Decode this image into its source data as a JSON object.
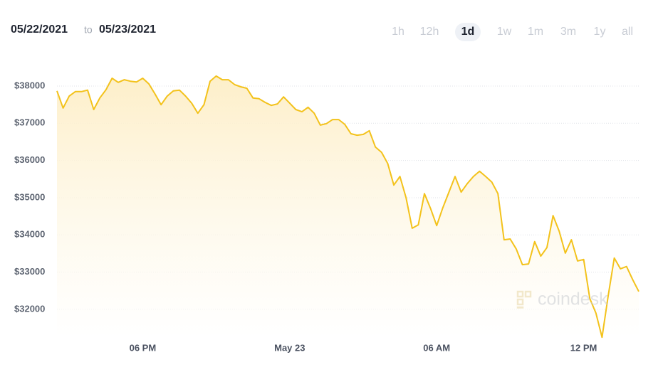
{
  "header": {
    "from_date": "05/22/2021",
    "to_word": "to",
    "to_date": "05/23/2021",
    "ranges": [
      "1h",
      "12h",
      "1d",
      "1w",
      "1m",
      "3m",
      "1y",
      "all"
    ],
    "selected": "1d"
  },
  "chart_data": {
    "type": "line",
    "watermark": "coindesk",
    "color": "#f3c21b",
    "grid": true,
    "categories": [
      null,
      null,
      null,
      null,
      null,
      null,
      null,
      null,
      null,
      null,
      null,
      null,
      null,
      null,
      "06 PM",
      null,
      null,
      null,
      null,
      null,
      null,
      null,
      null,
      null,
      null,
      null,
      null,
      null,
      null,
      null,
      null,
      null,
      null,
      null,
      null,
      null,
      null,
      null,
      "May 23",
      null,
      null,
      null,
      null,
      null,
      null,
      null,
      null,
      null,
      null,
      null,
      null,
      null,
      null,
      null,
      null,
      null,
      null,
      null,
      null,
      null,
      null,
      null,
      "06 AM",
      null,
      null,
      null,
      null,
      null,
      null,
      null,
      null,
      null,
      null,
      null,
      null,
      null,
      null,
      null,
      null,
      null,
      null,
      null,
      null,
      null,
      null,
      null,
      "12 PM",
      null,
      null,
      null,
      null,
      null,
      null,
      null,
      null,
      null
    ],
    "values": [
      37870,
      37410,
      37730,
      37850,
      37850,
      37890,
      37370,
      37680,
      37900,
      38210,
      38100,
      38170,
      38130,
      38110,
      38210,
      38060,
      37790,
      37500,
      37730,
      37870,
      37890,
      37730,
      37540,
      37270,
      37500,
      38130,
      38270,
      38170,
      38170,
      38040,
      37980,
      37940,
      37680,
      37660,
      37560,
      37480,
      37520,
      37710,
      37540,
      37370,
      37310,
      37430,
      37270,
      36950,
      36990,
      37100,
      37100,
      36970,
      36720,
      36680,
      36700,
      36800,
      36360,
      36220,
      35920,
      35340,
      35570,
      35000,
      34180,
      34270,
      35110,
      34710,
      34250,
      34730,
      35150,
      35570,
      35150,
      35380,
      35570,
      35710,
      35570,
      35420,
      35110,
      33870,
      33890,
      33620,
      33200,
      33220,
      33820,
      33430,
      33660,
      34520,
      34100,
      33510,
      33870,
      33300,
      33340,
      32290,
      31900,
      31250,
      32360,
      33380,
      33090,
      33150,
      32800,
      32480
    ],
    "ylim": [
      31100,
      38600
    ],
    "yticks": [
      {
        "value": 32000,
        "label": "$32000"
      },
      {
        "value": 33000,
        "label": "$33000"
      },
      {
        "value": 34000,
        "label": "$34000"
      },
      {
        "value": 35000,
        "label": "$35000"
      },
      {
        "value": 36000,
        "label": "$36000"
      },
      {
        "value": 37000,
        "label": "$37000"
      },
      {
        "value": 38000,
        "label": "$38000"
      }
    ]
  }
}
